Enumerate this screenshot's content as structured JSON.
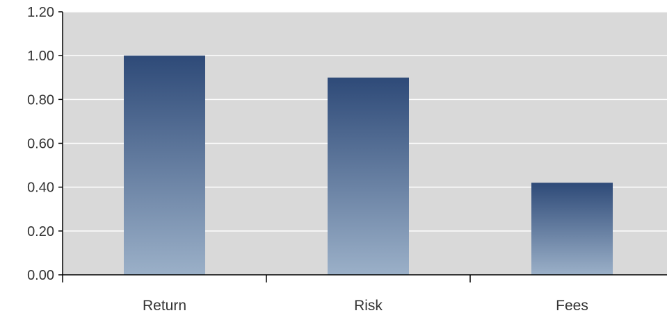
{
  "chart_data": {
    "type": "bar",
    "categories": [
      "Return",
      "Risk",
      "Fees"
    ],
    "values": [
      1.0,
      0.9,
      0.42
    ],
    "title": "",
    "xlabel": "",
    "ylabel": "",
    "ylim": [
      0,
      1.2
    ],
    "yticks": [
      "0.00",
      "0.20",
      "0.40",
      "0.60",
      "0.80",
      "1.00",
      "1.20"
    ],
    "grid": true,
    "legend": "none",
    "colors": {
      "plot_background": "#d9d9d9",
      "gridline": "#ffffff",
      "bar_top": "#2e4a78",
      "bar_bottom": "#9bb0c8",
      "axis": "#000000"
    }
  }
}
